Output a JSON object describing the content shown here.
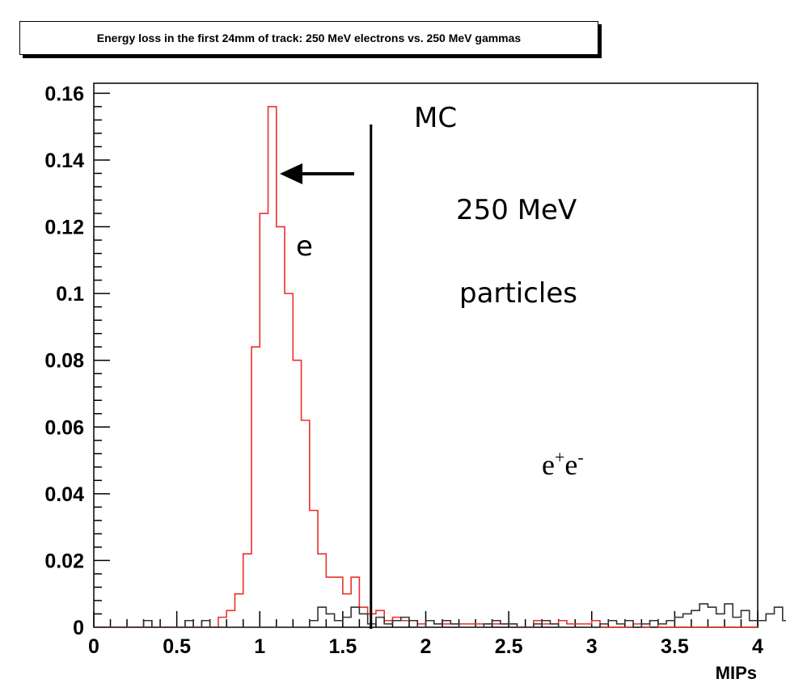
{
  "chart_data": {
    "type": "line",
    "title": "Energy loss in the first 24mm of track: 250 MeV electrons vs. 250 MeV gammas",
    "xlabel": "MIPs",
    "ylabel": "",
    "xlim": [
      0,
      4
    ],
    "ylim": [
      0,
      0.163
    ],
    "x_ticks": [
      "0",
      "0.5",
      "1",
      "1.5",
      "2",
      "2.5",
      "3",
      "3.5",
      "4"
    ],
    "y_ticks": [
      "0",
      "0.02",
      "0.04",
      "0.06",
      "0.08",
      "0.1",
      "0.12",
      "0.14",
      "0.16"
    ],
    "x_tick_values": [
      0,
      0.5,
      1,
      1.5,
      2,
      2.5,
      3,
      3.5,
      4
    ],
    "y_tick_values": [
      0,
      0.02,
      0.04,
      0.06,
      0.08,
      0.1,
      0.12,
      0.14,
      0.16
    ],
    "grid": false,
    "series": [
      {
        "color": "#e8302a",
        "style": "step-histogram",
        "bin_width": 0.05,
        "x_start": 0,
        "values": [
          0,
          0,
          0,
          0,
          0,
          0,
          0.002,
          0,
          0,
          0,
          0,
          0.002,
          0,
          0.002,
          0,
          0.003,
          0.005,
          0.01,
          0.022,
          0.084,
          0.124,
          0.156,
          0.12,
          0.1,
          0.08,
          0.062,
          0.035,
          0.022,
          0.015,
          0.015,
          0.01,
          0.015,
          0.006,
          0.004,
          0.005,
          0.002,
          0.003,
          0.002,
          0.002,
          0.001,
          0.002,
          0.001,
          0.001,
          0.001,
          0.001,
          0.001,
          0.001,
          0.001,
          0.001,
          0.001,
          0.001,
          0,
          0,
          0.002,
          0.001,
          0.001,
          0.002,
          0.001,
          0.001,
          0.001,
          0.002,
          0,
          0,
          0,
          0,
          0.001,
          0,
          0.002,
          0,
          0,
          0,
          0,
          0,
          0,
          0,
          0,
          0,
          0,
          0,
          0
        ]
      },
      {
        "color": "#333333",
        "style": "step-histogram",
        "bin_width": 0.05,
        "x_start": 0,
        "values": [
          0,
          0,
          0,
          0,
          0,
          0,
          0.002,
          0,
          0,
          0,
          0,
          0.002,
          0,
          0.002,
          0,
          0,
          0,
          0,
          0,
          0,
          0,
          0,
          0,
          0,
          0,
          0,
          0.002,
          0.006,
          0.004,
          0.002,
          0.003,
          0.006,
          0.004,
          0.001,
          0.003,
          0.001,
          0.002,
          0.003,
          0.002,
          0,
          0.002,
          0.001,
          0.002,
          0.001,
          0,
          0,
          0,
          0.001,
          0.002,
          0.001,
          0.001,
          0,
          0,
          0.001,
          0.002,
          0.001,
          0,
          0,
          0,
          0,
          0,
          0.001,
          0.002,
          0.001,
          0.002,
          0,
          0.001,
          0.002,
          0.001,
          0.002,
          0.003,
          0.004,
          0.005,
          0.007,
          0.006,
          0.004,
          0.007,
          0.003,
          0.005,
          0.002,
          0.002,
          0.004,
          0.006,
          0.002,
          0.007,
          0.003,
          0.002,
          0.004,
          0.002,
          0.002
        ]
      }
    ],
    "annotations": {
      "cut_line_x": 1.67,
      "mc": "MC",
      "energy": "250 MeV",
      "particles": "particles",
      "e_label": "e",
      "pair_e1": "e",
      "pair_sup1": "+",
      "pair_e2": "e",
      "pair_sup2": "-"
    }
  }
}
